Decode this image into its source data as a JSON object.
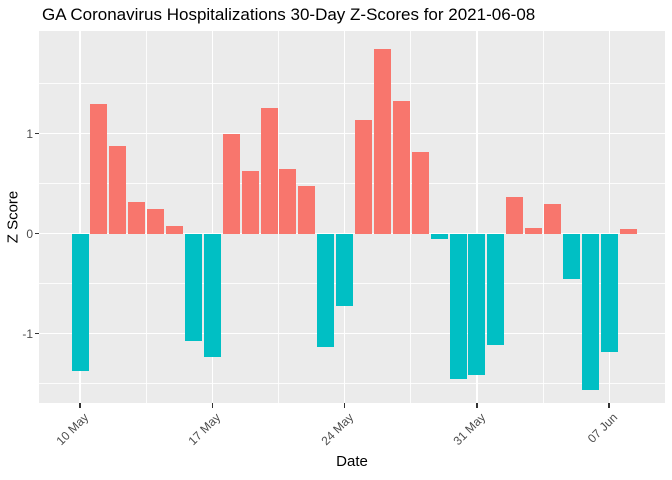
{
  "title": "GA Coronavirus Hospitalizations 30-Day Z-Scores for 2021-06-08",
  "axis": {
    "xlabel": "Date",
    "ylabel": "Z Score"
  },
  "theme": {
    "page_bg": "#ffffff",
    "panel_bg": "#ebebeb",
    "grid_color": "#ffffff",
    "tick_label_color": "#4d4d4d",
    "text_color": "#000000",
    "tick_mark_color": "#333333"
  },
  "chart_data": {
    "type": "bar",
    "title": "GA Coronavirus Hospitalizations 30-Day Z-Scores for 2021-06-08",
    "xlabel": "Date",
    "ylabel": "Z Score",
    "legend": false,
    "grid": true,
    "ylim": [
      -1.73,
      2.02
    ],
    "y_ticks": [
      1,
      0,
      -1
    ],
    "y_tick_labels": [
      "1",
      "0",
      "-1"
    ],
    "x_tick_labels": [
      "10 May",
      "17 May",
      "24 May",
      "31 May",
      "07 Jun"
    ],
    "x_tick_day_index": [
      0,
      7,
      14,
      21,
      28
    ],
    "bar_width_days": 0.9,
    "colors": {
      "positive": "#F8766D",
      "negative": "#00BFC4"
    },
    "dates": [
      "2021-05-10",
      "2021-05-11",
      "2021-05-12",
      "2021-05-13",
      "2021-05-14",
      "2021-05-15",
      "2021-05-16",
      "2021-05-17",
      "2021-05-18",
      "2021-05-19",
      "2021-05-20",
      "2021-05-21",
      "2021-05-22",
      "2021-05-23",
      "2021-05-24",
      "2021-05-25",
      "2021-05-26",
      "2021-05-27",
      "2021-05-28",
      "2021-05-29",
      "2021-05-30",
      "2021-05-31",
      "2021-06-01",
      "2021-06-02",
      "2021-06-03",
      "2021-06-04",
      "2021-06-05",
      "2021-06-06",
      "2021-06-07",
      "2021-06-08"
    ],
    "values": [
      -1.37,
      1.3,
      0.88,
      0.32,
      0.25,
      0.08,
      -1.07,
      -1.23,
      1.0,
      0.63,
      1.26,
      0.65,
      0.48,
      -1.13,
      -0.72,
      1.14,
      1.85,
      1.33,
      0.82,
      -0.05,
      -1.45,
      -1.41,
      -1.11,
      0.37,
      0.06,
      0.3,
      -0.45,
      -1.56,
      -1.18,
      0.05
    ]
  }
}
